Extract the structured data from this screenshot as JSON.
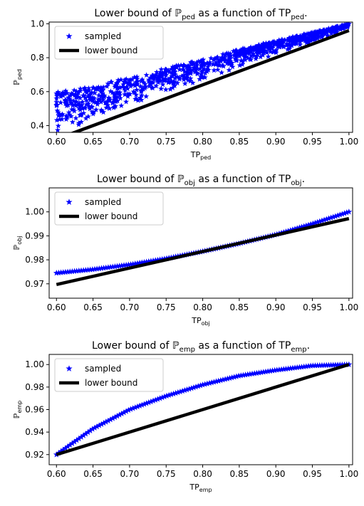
{
  "colors": {
    "sampled": "#0000ff",
    "bound": "#000000"
  },
  "legend": {
    "placement": "upper-left",
    "sampled_label": "sampled",
    "bound_label": "lower bound"
  },
  "chart_data": [
    {
      "type": "scatter",
      "title": {
        "prefix": "Lower bound of ",
        "sym": "ℙ",
        "sub1": "ped",
        "mid": " as a function of TP",
        "sub2": "ped",
        "suffix": "."
      },
      "xlabel": {
        "main": "TP",
        "sub": "ped"
      },
      "ylabel": {
        "main": "ℙ",
        "sub": "ped"
      },
      "xlim": [
        0.59,
        1.005
      ],
      "ylim": [
        0.36,
        1.01
      ],
      "xticks": [
        "0.60",
        "0.65",
        "0.70",
        "0.75",
        "0.80",
        "0.85",
        "0.90",
        "0.95",
        "1.00"
      ],
      "yticks": [
        "0.4",
        "0.6",
        "0.8",
        "1.0"
      ],
      "series": [
        {
          "name": "sampled",
          "marker": "star",
          "kind": "band",
          "x": [
            0.6,
            0.62,
            0.64,
            0.66,
            0.68,
            0.7,
            0.72,
            0.74,
            0.76,
            0.78,
            0.8,
            0.82,
            0.84,
            0.86,
            0.88,
            0.9,
            0.92,
            0.94,
            0.96,
            0.98,
            1.0
          ],
          "upper": [
            0.6,
            0.62,
            0.63,
            0.63,
            0.67,
            0.68,
            0.7,
            0.73,
            0.75,
            0.77,
            0.79,
            0.81,
            0.84,
            0.86,
            0.88,
            0.9,
            0.92,
            0.94,
            0.96,
            0.98,
            1.0
          ],
          "lower": [
            0.36,
            0.38,
            0.42,
            0.45,
            0.49,
            0.52,
            0.55,
            0.58,
            0.61,
            0.64,
            0.67,
            0.7,
            0.73,
            0.76,
            0.79,
            0.82,
            0.85,
            0.88,
            0.91,
            0.94,
            0.98
          ]
        },
        {
          "name": "lower bound",
          "kind": "line",
          "x": [
            0.6,
            1.0
          ],
          "y": [
            0.32,
            0.96
          ]
        }
      ]
    },
    {
      "type": "scatter",
      "title": {
        "prefix": "Lower bound of ",
        "sym": "ℙ",
        "sub1": "obj",
        "mid": " as a function of TP",
        "sub2": "obj",
        "suffix": "."
      },
      "xlabel": {
        "main": "TP",
        "sub": "obj"
      },
      "ylabel": {
        "main": "ℙ",
        "sub": "obj"
      },
      "xlim": [
        0.59,
        1.005
      ],
      "ylim": [
        0.964,
        1.01
      ],
      "xticks": [
        "0.60",
        "0.65",
        "0.70",
        "0.75",
        "0.80",
        "0.85",
        "0.90",
        "0.95",
        "1.00"
      ],
      "yticks": [
        "0.97",
        "0.98",
        "0.99",
        "1.00"
      ],
      "series": [
        {
          "name": "sampled",
          "marker": "star",
          "kind": "points",
          "x": [
            0.6,
            0.65,
            0.7,
            0.75,
            0.8,
            0.85,
            0.9,
            0.95,
            1.0
          ],
          "y": [
            0.9745,
            0.976,
            0.978,
            0.9805,
            0.9835,
            0.9868,
            0.9905,
            0.995,
            1.0
          ]
        },
        {
          "name": "lower bound",
          "kind": "line",
          "x": [
            0.6,
            1.0
          ],
          "y": [
            0.9697,
            0.9972
          ]
        }
      ]
    },
    {
      "type": "scatter",
      "title": {
        "prefix": "Lower bound of ",
        "sym": "ℙ",
        "sub1": "emp",
        "mid": " as a function of TP",
        "sub2": "emp",
        "suffix": "."
      },
      "xlabel": {
        "main": "TP",
        "sub": "emp"
      },
      "ylabel": {
        "main": "ℙ",
        "sub": "emp"
      },
      "xlim": [
        0.59,
        1.005
      ],
      "ylim": [
        0.911,
        1.009
      ],
      "xticks": [
        "0.60",
        "0.65",
        "0.70",
        "0.75",
        "0.80",
        "0.85",
        "0.90",
        "0.95",
        "1.00"
      ],
      "yticks": [
        "0.92",
        "0.94",
        "0.96",
        "0.98",
        "1.00"
      ],
      "series": [
        {
          "name": "sampled",
          "marker": "star",
          "kind": "points",
          "x": [
            0.6,
            0.65,
            0.7,
            0.75,
            0.8,
            0.85,
            0.9,
            0.95,
            1.0
          ],
          "y": [
            0.92,
            0.943,
            0.96,
            0.972,
            0.982,
            0.99,
            0.995,
            0.999,
            1.0
          ]
        },
        {
          "name": "lower bound",
          "kind": "line",
          "x": [
            0.6,
            1.0
          ],
          "y": [
            0.92,
            1.0
          ]
        }
      ]
    }
  ]
}
